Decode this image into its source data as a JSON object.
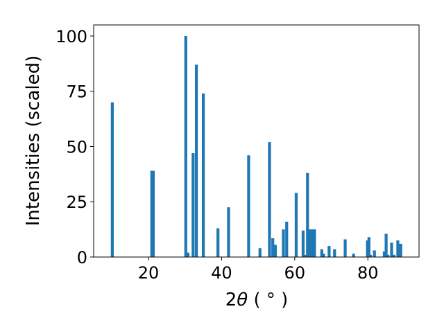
{
  "chart_data": {
    "type": "bar",
    "xlabel_prefix": "2",
    "xlabel_theta": "θ",
    "xlabel_suffix": " ( ° )",
    "ylabel": "Intensities (scaled)",
    "xlim": [
      5,
      94
    ],
    "ylim": [
      0,
      105
    ],
    "xticks": [
      20,
      40,
      60,
      80
    ],
    "yticks": [
      0,
      25,
      50,
      75,
      100
    ],
    "bar_color": "#1f77b4",
    "bar_width": 0.8,
    "x": [
      10.1,
      20.9,
      21.3,
      30.2,
      30.8,
      32.2,
      33.1,
      35.0,
      39.0,
      41.9,
      47.4,
      50.5,
      53.1,
      54.0,
      54.7,
      56.9,
      57.8,
      60.4,
      62.3,
      62.7,
      63.5,
      64.2,
      64.9,
      65.4,
      67.4,
      67.9,
      69.4,
      70.9,
      73.8,
      76.1,
      79.9,
      80.3,
      80.7,
      81.8,
      84.5,
      85.0,
      85.5,
      86.5,
      87.1,
      88.2,
      89.0
    ],
    "y": [
      70,
      39,
      39,
      100,
      2,
      47,
      87,
      74,
      13,
      22.5,
      46,
      4,
      52,
      8.5,
      5.5,
      12.5,
      16,
      29,
      12,
      1,
      38,
      12.5,
      12.5,
      12.5,
      3.5,
      1.5,
      5,
      3.5,
      8,
      1.5,
      7.5,
      9,
      1,
      3,
      2.5,
      10.5,
      1,
      6.5,
      1,
      7.5,
      6
    ]
  }
}
